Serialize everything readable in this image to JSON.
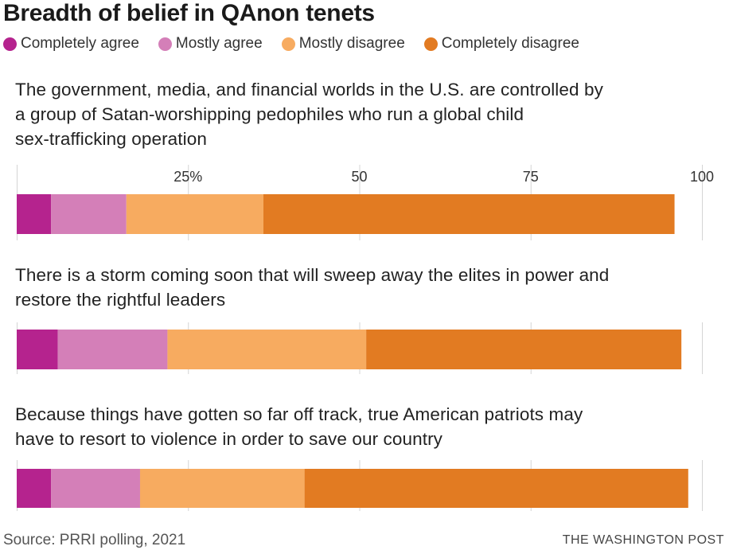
{
  "title": "Breadth of belief in QAnon tenets",
  "legend": [
    {
      "label": "Completely agree",
      "color": "#b5238e"
    },
    {
      "label": "Mostly agree",
      "color": "#d47fb8"
    },
    {
      "label": "Mostly disagree",
      "color": "#f7ab60"
    },
    {
      "label": "Completely disagree",
      "color": "#e27b22"
    }
  ],
  "questions": [
    {
      "lines": [
        "The government, media, and financial worlds in the U.S. are controlled by",
        "a group of Satan-worshipping pedophiles who run a global child",
        "sex-trafficking operation"
      ]
    },
    {
      "lines": [
        "There is a storm coming soon that will sweep away the elites in power and",
        "restore the rightful leaders"
      ]
    },
    {
      "lines": [
        "Because things have gotten so far off track, true American patriots may",
        "have to resort to violence in order to save our country"
      ]
    }
  ],
  "chart_data": {
    "type": "bar",
    "orientation": "horizontal",
    "stacked": true,
    "xlim": [
      0,
      100
    ],
    "x_tick_labels": [
      "25%",
      "50",
      "75",
      "100"
    ],
    "x_ticks": [
      25,
      50,
      75,
      100
    ],
    "categories": [
      "The government, media, and financial worlds in the U.S. are controlled by a group of Satan-worshipping pedophiles who run a global child sex-trafficking operation",
      "There is a storm coming soon that will sweep away the elites in power and restore the rightful leaders",
      "Because things have gotten so far off track, true American patriots may have to resort to violence in order to save our country"
    ],
    "series": [
      {
        "name": "Completely agree",
        "values": [
          5,
          6,
          5
        ],
        "color": "#b5238e"
      },
      {
        "name": "Mostly agree",
        "values": [
          11,
          16,
          13
        ],
        "color": "#d47fb8"
      },
      {
        "name": "Mostly disagree",
        "values": [
          20,
          29,
          24
        ],
        "color": "#f7ab60"
      },
      {
        "name": "Completely disagree",
        "values": [
          60,
          46,
          56
        ],
        "color": "#e27b22"
      }
    ],
    "grid": true
  },
  "footer": {
    "source": "Source: PRRI polling, 2021",
    "credit": "THE WASHINGTON POST"
  }
}
